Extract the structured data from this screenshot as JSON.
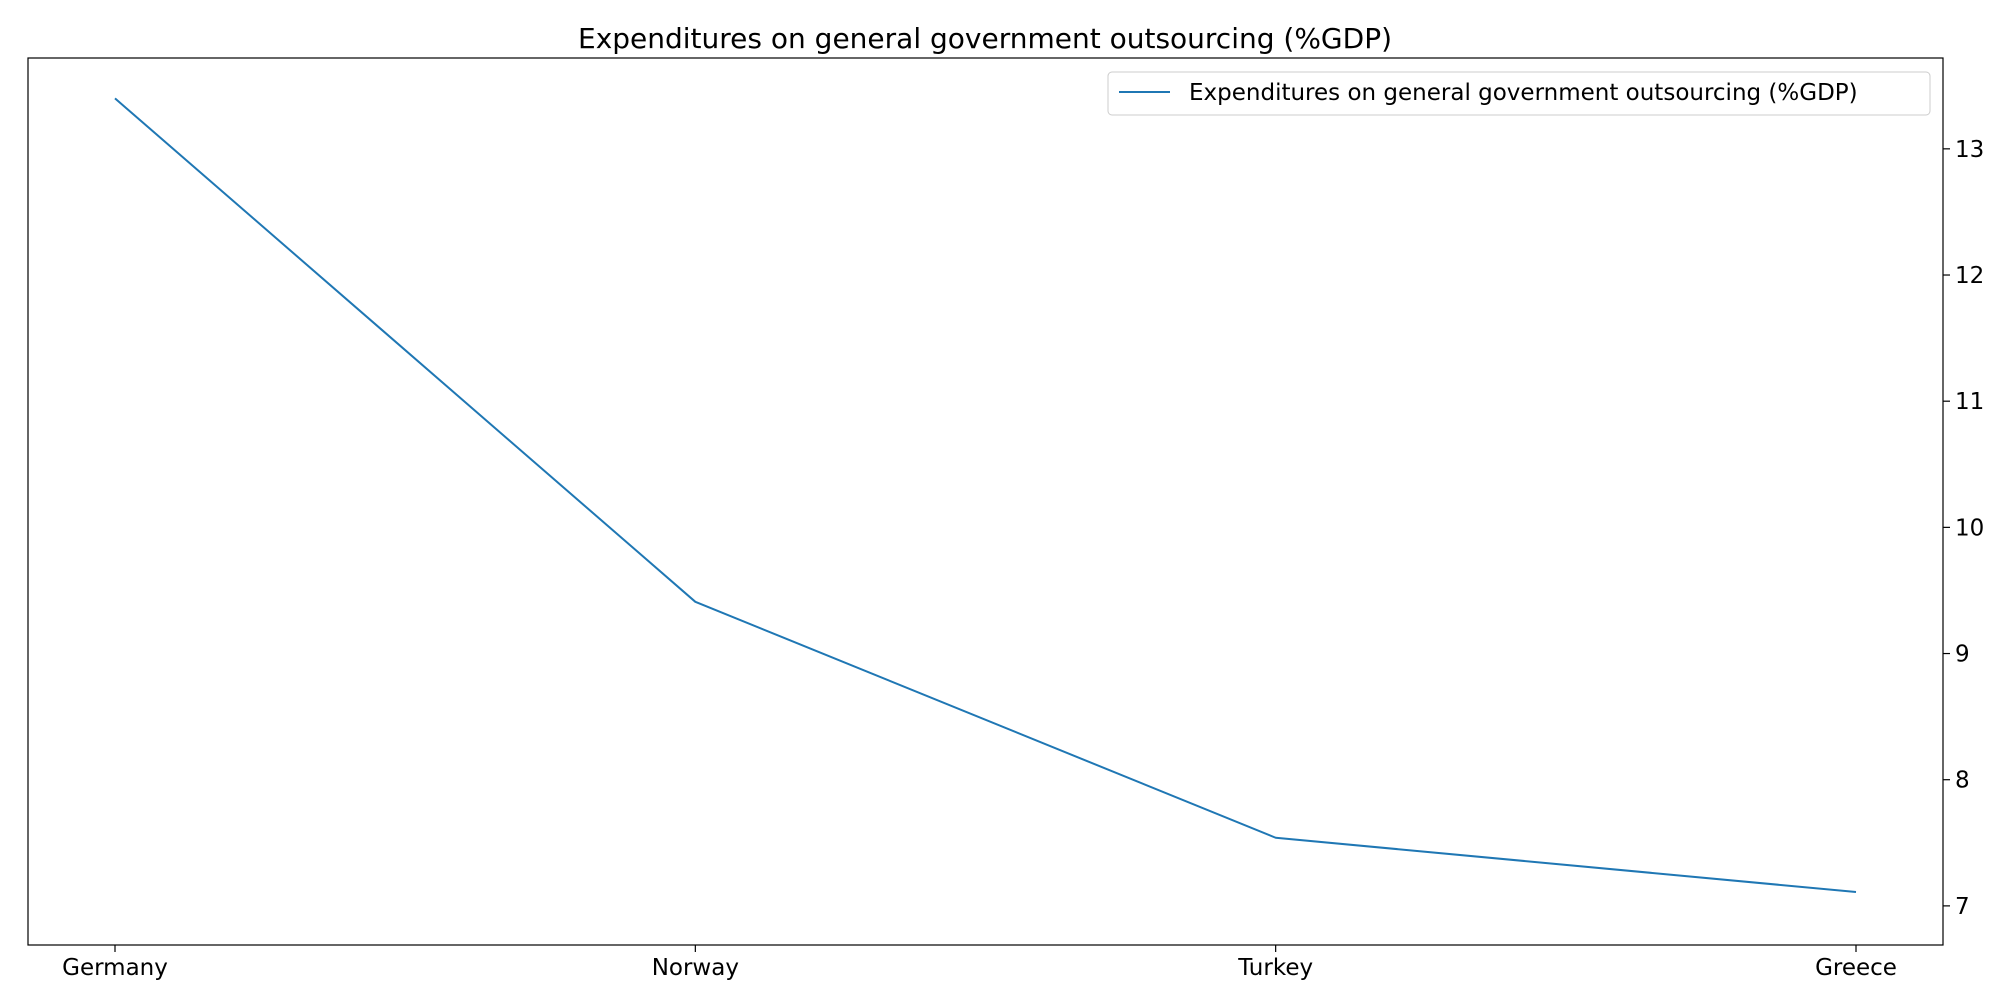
{
  "chart_data": {
    "type": "line",
    "title": "Expenditures on general government outsourcing (%GDP)",
    "xlabel": "",
    "ylabel": "",
    "categories": [
      "Germany",
      "Norway",
      "Turkey",
      "Greece"
    ],
    "series": [
      {
        "name": "Expenditures on general government outsourcing (%GDP)",
        "values": [
          13.4,
          9.41,
          7.54,
          7.11
        ],
        "color": "#1f77b4"
      }
    ],
    "ylim": [
      6.69,
      13.72
    ],
    "yticks": [
      7,
      8,
      9,
      10,
      11,
      12,
      13
    ],
    "y_axis_side": "right",
    "grid": false,
    "legend_position": "upper right"
  }
}
